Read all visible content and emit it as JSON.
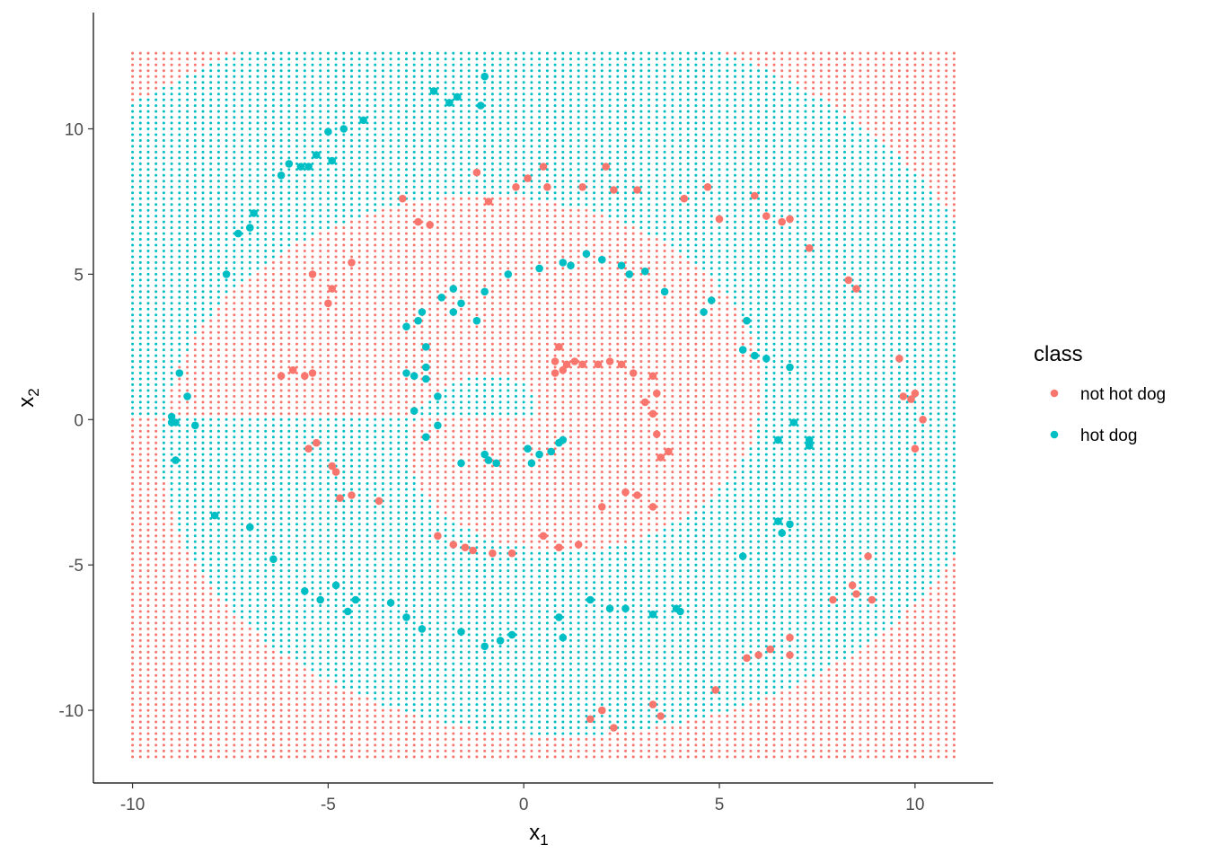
{
  "chart_data": {
    "type": "scatter",
    "title": "",
    "xlabel": "x",
    "xlabel_sub": "1",
    "ylabel": "x",
    "ylabel_sub": "2",
    "xlim": [
      -11,
      12
    ],
    "ylim": [
      -12.5,
      14
    ],
    "x_ticks": [
      -10,
      -5,
      0,
      5,
      10
    ],
    "x_tick_labels": [
      "-10",
      "-5",
      "0",
      "5",
      "10"
    ],
    "y_ticks": [
      -10,
      -5,
      0,
      5,
      10
    ],
    "y_tick_labels": [
      "-10",
      "-5",
      "0",
      "5",
      "10"
    ],
    "grid": false,
    "legend": {
      "title": "class",
      "position": "right",
      "entries": [
        {
          "label": "not hot dog",
          "color": "#F8766D"
        },
        {
          "label": "hot dog",
          "color": "#00BFC4"
        }
      ]
    },
    "background_grid": {
      "x_range": [
        -10,
        11
      ],
      "y_range": [
        -11.6,
        12.7
      ],
      "step": 0.2,
      "description": "classifier prediction grid; alternating concentric rings of classes"
    },
    "series": [
      {
        "name": "not hot dog",
        "color": "#F8766D",
        "points": [
          [
            -2.7,
            6.8
          ],
          [
            -3.1,
            7.6
          ],
          [
            -2.4,
            6.7
          ],
          [
            -1.2,
            8.5
          ],
          [
            -0.9,
            7.5
          ],
          [
            -0.2,
            8.0
          ],
          [
            0.1,
            8.3
          ],
          [
            0.5,
            8.7
          ],
          [
            0.6,
            8.0
          ],
          [
            1.5,
            8.0
          ],
          [
            2.1,
            8.7
          ],
          [
            2.3,
            7.9
          ],
          [
            2.9,
            7.9
          ],
          [
            4.1,
            7.6
          ],
          [
            4.7,
            8.0
          ],
          [
            5.0,
            6.9
          ],
          [
            5.9,
            7.7
          ],
          [
            6.2,
            7.0
          ],
          [
            6.6,
            6.8
          ],
          [
            6.8,
            6.9
          ],
          [
            7.3,
            5.9
          ],
          [
            8.3,
            4.8
          ],
          [
            8.5,
            4.5
          ],
          [
            9.6,
            2.1
          ],
          [
            9.7,
            0.8
          ],
          [
            9.9,
            0.7
          ],
          [
            10.0,
            0.9
          ],
          [
            10.2,
            0.0
          ],
          [
            10.0,
            -1.0
          ],
          [
            8.8,
            -4.7
          ],
          [
            8.4,
            -5.7
          ],
          [
            8.5,
            -6.0
          ],
          [
            8.9,
            -6.2
          ],
          [
            7.9,
            -6.2
          ],
          [
            6.8,
            -7.5
          ],
          [
            6.8,
            -8.1
          ],
          [
            6.3,
            -7.9
          ],
          [
            6.0,
            -8.1
          ],
          [
            5.7,
            -8.2
          ],
          [
            4.9,
            -9.3
          ],
          [
            3.3,
            -9.8
          ],
          [
            3.5,
            -10.2
          ],
          [
            2.0,
            -10.0
          ],
          [
            2.3,
            -10.6
          ],
          [
            1.7,
            -10.3
          ],
          [
            -4.4,
            5.4
          ],
          [
            -4.9,
            4.5
          ],
          [
            -5.0,
            4.0
          ],
          [
            -5.4,
            5.0
          ],
          [
            -6.2,
            1.5
          ],
          [
            -5.9,
            1.7
          ],
          [
            -5.6,
            1.5
          ],
          [
            -5.4,
            1.6
          ],
          [
            -5.5,
            -1.0
          ],
          [
            -5.3,
            -0.8
          ],
          [
            -4.9,
            -1.6
          ],
          [
            -4.8,
            -1.8
          ],
          [
            -4.7,
            -2.7
          ],
          [
            -4.4,
            -2.6
          ],
          [
            -3.7,
            -2.8
          ],
          [
            -2.2,
            -4.0
          ],
          [
            -1.8,
            -4.3
          ],
          [
            -1.5,
            -4.4
          ],
          [
            -1.3,
            -4.5
          ],
          [
            -0.8,
            -4.6
          ],
          [
            -0.3,
            -4.6
          ],
          [
            0.5,
            -4.0
          ],
          [
            0.9,
            -4.4
          ],
          [
            1.4,
            -4.3
          ],
          [
            2.0,
            -3.0
          ],
          [
            2.6,
            -2.5
          ],
          [
            2.9,
            -2.6
          ],
          [
            3.3,
            -3.0
          ],
          [
            3.4,
            -0.5
          ],
          [
            3.7,
            -1.1
          ],
          [
            3.5,
            -1.3
          ],
          [
            3.3,
            0.2
          ],
          [
            3.1,
            0.6
          ],
          [
            3.4,
            0.9
          ],
          [
            3.3,
            1.5
          ],
          [
            2.8,
            1.6
          ],
          [
            2.5,
            1.9
          ],
          [
            2.2,
            2.0
          ],
          [
            1.9,
            1.9
          ],
          [
            1.5,
            1.9
          ],
          [
            1.3,
            2.0
          ],
          [
            1.1,
            1.9
          ],
          [
            0.8,
            2.0
          ],
          [
            0.9,
            2.5
          ],
          [
            0.8,
            1.6
          ],
          [
            1.0,
            1.7
          ]
        ]
      },
      {
        "name": "hot dog",
        "color": "#00BFC4",
        "points": [
          [
            -9.0,
            0.1
          ],
          [
            -8.9,
            -0.1
          ],
          [
            -8.8,
            1.6
          ],
          [
            -8.6,
            0.8
          ],
          [
            -8.4,
            -0.2
          ],
          [
            -8.9,
            -1.4
          ],
          [
            -7.9,
            -3.3
          ],
          [
            -7.0,
            -3.7
          ],
          [
            -6.4,
            -4.8
          ],
          [
            -5.6,
            -5.9
          ],
          [
            -5.2,
            -6.2
          ],
          [
            -4.8,
            -5.7
          ],
          [
            -4.5,
            -6.6
          ],
          [
            -4.3,
            -6.2
          ],
          [
            -3.4,
            -6.3
          ],
          [
            -3.0,
            -6.8
          ],
          [
            -2.6,
            -7.2
          ],
          [
            -1.6,
            -7.3
          ],
          [
            -1.0,
            -7.8
          ],
          [
            -0.6,
            -7.6
          ],
          [
            -0.3,
            -7.4
          ],
          [
            0.9,
            -6.8
          ],
          [
            1.0,
            -7.5
          ],
          [
            1.7,
            -6.2
          ],
          [
            2.2,
            -6.5
          ],
          [
            2.6,
            -6.5
          ],
          [
            3.3,
            -6.7
          ],
          [
            3.9,
            -6.5
          ],
          [
            4.0,
            -6.6
          ],
          [
            5.6,
            -4.7
          ],
          [
            6.5,
            -3.5
          ],
          [
            6.6,
            -3.9
          ],
          [
            6.8,
            -3.6
          ],
          [
            7.3,
            -0.7
          ],
          [
            7.3,
            -0.9
          ],
          [
            6.9,
            -0.1
          ],
          [
            6.5,
            -0.7
          ],
          [
            6.8,
            1.8
          ],
          [
            6.2,
            2.1
          ],
          [
            5.9,
            2.2
          ],
          [
            5.6,
            2.4
          ],
          [
            5.7,
            3.4
          ],
          [
            4.8,
            4.1
          ],
          [
            4.6,
            3.7
          ],
          [
            3.6,
            4.4
          ],
          [
            3.1,
            5.1
          ],
          [
            2.7,
            5.0
          ],
          [
            2.5,
            5.3
          ],
          [
            2.0,
            5.5
          ],
          [
            1.6,
            5.7
          ],
          [
            1.2,
            5.3
          ],
          [
            1.0,
            5.4
          ],
          [
            0.4,
            5.2
          ],
          [
            -0.4,
            5.0
          ],
          [
            -1.0,
            4.4
          ],
          [
            -1.2,
            3.4
          ],
          [
            -1.6,
            4.0
          ],
          [
            -1.8,
            3.7
          ],
          [
            -1.8,
            4.5
          ],
          [
            -2.1,
            4.2
          ],
          [
            -2.6,
            3.7
          ],
          [
            -2.7,
            3.4
          ],
          [
            -2.5,
            2.5
          ],
          [
            -3.0,
            3.2
          ],
          [
            -2.5,
            1.8
          ],
          [
            -2.5,
            1.4
          ],
          [
            -2.8,
            1.5
          ],
          [
            -3.0,
            1.6
          ],
          [
            -2.8,
            0.3
          ],
          [
            -2.2,
            0.8
          ],
          [
            -2.2,
            -0.2
          ],
          [
            -2.5,
            -0.6
          ],
          [
            -1.6,
            -1.5
          ],
          [
            -1.0,
            -1.2
          ],
          [
            -0.9,
            -1.4
          ],
          [
            -0.7,
            -1.5
          ],
          [
            0.1,
            -1.0
          ],
          [
            0.2,
            -1.5
          ],
          [
            0.4,
            -1.2
          ],
          [
            0.7,
            -1.1
          ],
          [
            0.9,
            -0.8
          ],
          [
            1.0,
            -0.7
          ],
          [
            -9.0,
            -0.1
          ],
          [
            -7.6,
            5.0
          ],
          [
            -7.3,
            6.4
          ],
          [
            -7.0,
            6.6
          ],
          [
            -6.9,
            7.1
          ],
          [
            -6.2,
            8.4
          ],
          [
            -5.7,
            8.7
          ],
          [
            -5.5,
            8.7
          ],
          [
            -5.3,
            9.1
          ],
          [
            -4.9,
            8.9
          ],
          [
            -5.0,
            9.9
          ],
          [
            -4.6,
            10.0
          ],
          [
            -4.1,
            10.3
          ],
          [
            -2.3,
            11.3
          ],
          [
            -1.9,
            10.9
          ],
          [
            -1.7,
            11.1
          ],
          [
            -1.1,
            10.8
          ],
          [
            -1.0,
            11.8
          ],
          [
            -6.0,
            8.8
          ]
        ]
      }
    ]
  }
}
